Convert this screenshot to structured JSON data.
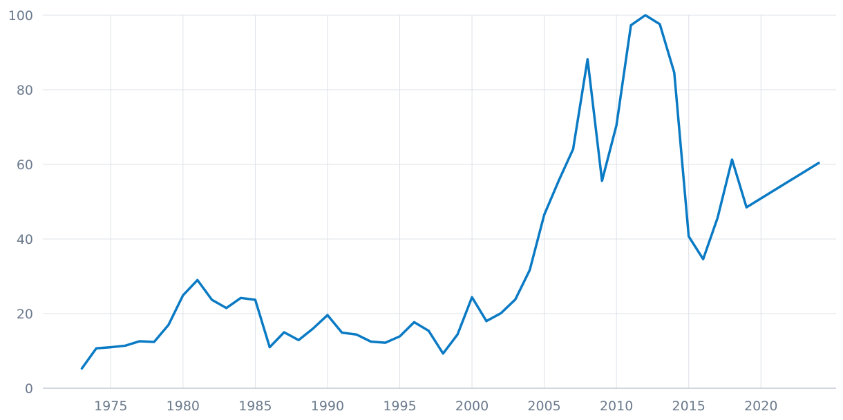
{
  "chart_data": {
    "type": "line",
    "title": "",
    "xlabel": "",
    "ylabel": "",
    "xlim": [
      1970.3,
      2025.2
    ],
    "ylim": [
      0,
      100
    ],
    "x_ticks": [
      1975,
      1980,
      1985,
      1990,
      1995,
      2000,
      2005,
      2010,
      2015,
      2020
    ],
    "y_ticks": [
      0,
      20,
      40,
      60,
      80,
      100
    ],
    "grid": true,
    "legend": "none",
    "colors": {
      "series": "#0a7ac4",
      "grid": "#dde1e7",
      "axis": "#c3c9d2",
      "tick_text": "#6b7a8d"
    },
    "series": [
      {
        "x": [
          1973,
          1974,
          1975,
          1976,
          1977,
          1978,
          1979,
          1980,
          1981,
          1982,
          1983,
          1984,
          1985,
          1986,
          1987,
          1988,
          1989,
          1990,
          1991,
          1992,
          1993,
          1994,
          1995,
          1996,
          1997,
          1998,
          1999,
          2000,
          2001,
          2002,
          2003,
          2004,
          2005,
          2006,
          2007,
          2008,
          2009,
          2010,
          2011,
          2012,
          2013,
          2014,
          2015,
          2016,
          2017,
          2018,
          2019,
          2024
        ],
        "y": [
          5.3,
          10.7,
          11.0,
          11.4,
          12.6,
          12.4,
          17.0,
          24.9,
          29.0,
          23.7,
          21.5,
          24.2,
          23.7,
          11.0,
          15.0,
          12.9,
          16.0,
          19.6,
          14.9,
          14.4,
          12.5,
          12.2,
          13.9,
          17.7,
          15.4,
          9.3,
          14.4,
          24.4,
          18.0,
          20.1,
          23.8,
          31.7,
          46.5,
          55.6,
          64.1,
          88.2,
          55.6,
          70.5,
          97.3,
          100.0,
          97.6,
          84.6,
          40.7,
          34.6,
          45.7,
          61.3,
          48.5,
          60.4
        ]
      }
    ]
  }
}
